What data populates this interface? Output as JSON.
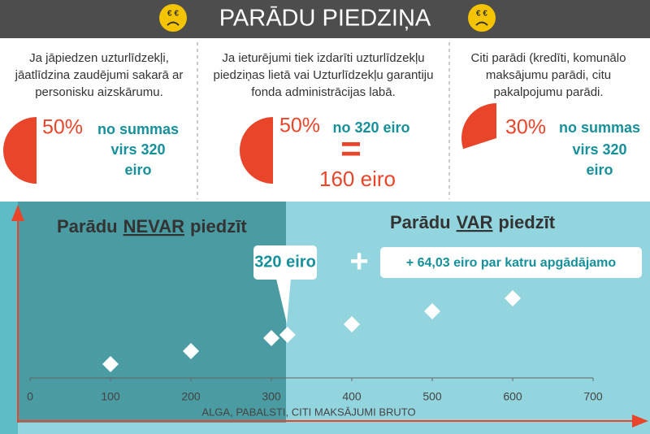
{
  "header": {
    "title": "PARĀDU PIEDZIŅA",
    "face_eyes": "€ €"
  },
  "panels": [
    {
      "description": [
        "Ja jāpiedzen uzturlīdzekļi,",
        "jāatlīdzina zaudējumi sakarā ar",
        "personisku aizskārumu."
      ],
      "share": {
        "value": 50,
        "label": "50%"
      },
      "lines": [
        "no summas",
        "virs 320",
        "eiro"
      ]
    },
    {
      "description": [
        "Ja ieturējumi tiek izdarīti uzturlīdzekļu",
        "piedziņas lietā vai Uzturlīdzekļu garantiju",
        "fonda administrācijas labā."
      ],
      "share": {
        "value": 50,
        "label": "50%"
      },
      "lines": [
        "no 320 eiro",
        "=",
        "160 eiro"
      ]
    },
    {
      "description": [
        "Citi parādi (kredīti, komunālo",
        "maksājumu parādi, citu",
        "pakalpojumu parādi."
      ],
      "share": {
        "value": 30,
        "label": "30%"
      },
      "lines": [
        "no summas",
        "virs 320",
        "eiro"
      ]
    }
  ],
  "zones": {
    "left": {
      "before": "Parādu",
      "key": "NEVAR",
      "after": "piedzīt"
    },
    "right": {
      "before": "Parādu",
      "key": "VAR",
      "after": "piedzīt"
    },
    "threshold_label": "320 eiro",
    "plus": "+",
    "per_dependent": "+ 64,03 eiro par katru apgādājamo"
  },
  "chart_data": {
    "type": "scatter",
    "x": [
      100,
      200,
      300,
      320,
      400,
      500,
      600
    ],
    "values": [
      17,
      33,
      49,
      53,
      66,
      82,
      98
    ],
    "color": "#ffffff",
    "xlim": [
      0,
      700
    ],
    "ylim": [
      0,
      110
    ],
    "xticks": [
      0,
      100,
      200,
      300,
      400,
      500,
      600,
      700
    ],
    "x_label": "ALGA, PABALSTI, CITI MAKSĀJUMI BRUTO"
  }
}
